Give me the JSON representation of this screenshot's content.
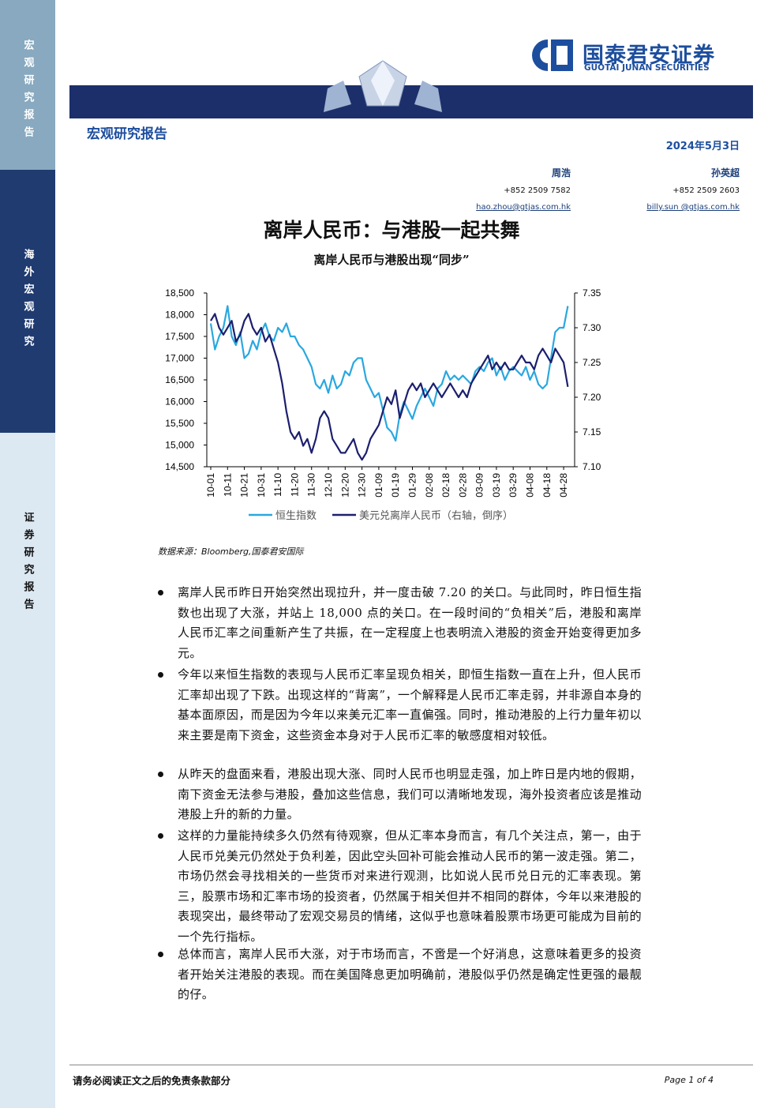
{
  "sidebar": [
    "宏观研究报告",
    "海外宏观研究",
    "证券研究报告"
  ],
  "header": {
    "logo_cn": "国泰君安证券",
    "logo_en": "GUOTAI JUNAN SECURITIES",
    "report_type": "宏观研究报告",
    "date": "2024年5月3日"
  },
  "authors": [
    {
      "name": "周浩",
      "phone": "+852 2509 7582",
      "email": "hao.zhou@gtjas.com.hk"
    },
    {
      "name": "孙英超",
      "phone": "+852 2509 2603",
      "email": "billy.sun @gtjas.com.hk"
    }
  ],
  "title": "离岸人民币：与港股一起共舞",
  "chart_data": {
    "type": "line",
    "title": "离岸人民币与港股出现“同步”",
    "categories": [
      "10-01",
      null,
      null,
      null,
      "10-11",
      null,
      null,
      null,
      "10-21",
      null,
      null,
      null,
      "10-31",
      null,
      null,
      null,
      "11-10",
      null,
      null,
      null,
      "11-20",
      null,
      null,
      null,
      "11-30",
      null,
      null,
      null,
      "12-10",
      null,
      null,
      null,
      "12-20",
      null,
      null,
      null,
      "12-30",
      null,
      null,
      null,
      "01-09",
      null,
      null,
      null,
      "01-19",
      null,
      null,
      null,
      "01-29",
      null,
      null,
      null,
      "02-08",
      null,
      null,
      null,
      "02-18",
      null,
      null,
      null,
      "02-28",
      null,
      null,
      null,
      "03-09",
      null,
      null,
      null,
      "03-19",
      null,
      null,
      null,
      "03-29",
      null,
      null,
      null,
      "04-08",
      null,
      null,
      null,
      "04-18",
      null,
      null,
      null,
      "04-28",
      null
    ],
    "series": [
      {
        "name": "恒生指数",
        "color": "#29a8e0",
        "values": [
          17800,
          17200,
          17500,
          17700,
          18200,
          17500,
          17300,
          17600,
          17000,
          17100,
          17400,
          17200,
          17600,
          17800,
          17500,
          17400,
          17700,
          17600,
          17800,
          17500,
          17500,
          17300,
          17200,
          17000,
          16800,
          16400,
          16300,
          16500,
          16200,
          16600,
          16300,
          16400,
          16700,
          16600,
          16900,
          17000,
          17000,
          16500,
          16300,
          16100,
          16200,
          15800,
          15400,
          15300,
          15100,
          15700,
          16000,
          15800,
          15600,
          15900,
          16100,
          16300,
          16100,
          15900,
          16300,
          16400,
          16700,
          16500,
          16600,
          16500,
          16600,
          16500,
          16400,
          16700,
          16800,
          16700,
          16900,
          17000,
          16600,
          16800,
          16500,
          16700,
          16800,
          16700,
          16600,
          16800,
          16500,
          16700,
          16400,
          16300,
          16400,
          17000,
          17600,
          17700,
          17700,
          18200
        ]
      },
      {
        "name": "美元兑离岸人民币（右轴，倒序）",
        "color": "#1c1f6e",
        "axis": "y2",
        "values": [
          7.31,
          7.32,
          7.3,
          7.29,
          7.3,
          7.31,
          7.28,
          7.29,
          7.31,
          7.32,
          7.3,
          7.29,
          7.3,
          7.28,
          7.29,
          7.27,
          7.25,
          7.22,
          7.18,
          7.15,
          7.14,
          7.15,
          7.13,
          7.14,
          7.12,
          7.14,
          7.17,
          7.18,
          7.17,
          7.14,
          7.13,
          7.12,
          7.12,
          7.13,
          7.14,
          7.12,
          7.11,
          7.12,
          7.14,
          7.15,
          7.16,
          7.18,
          7.2,
          7.19,
          7.21,
          7.17,
          7.19,
          7.21,
          7.22,
          7.21,
          7.22,
          7.2,
          7.21,
          7.22,
          7.21,
          7.2,
          7.21,
          7.22,
          7.21,
          7.2,
          7.21,
          7.2,
          7.22,
          7.23,
          7.24,
          7.25,
          7.26,
          7.24,
          7.25,
          7.24,
          7.25,
          7.24,
          7.24,
          7.25,
          7.26,
          7.25,
          7.25,
          7.24,
          7.26,
          7.27,
          7.26,
          7.25,
          7.27,
          7.26,
          7.25,
          7.215
        ]
      }
    ],
    "ylim": [
      14500,
      18500
    ],
    "yticks": [
      {
        "value": 14500,
        "label": "14,500"
      },
      {
        "value": 15000,
        "label": "15,000"
      },
      {
        "value": 15500,
        "label": "15,500"
      },
      {
        "value": 16000,
        "label": "16,000"
      },
      {
        "value": 16500,
        "label": "16,500"
      },
      {
        "value": 17000,
        "label": "17,000"
      },
      {
        "value": 17500,
        "label": "17,500"
      },
      {
        "value": 18000,
        "label": "18,000"
      },
      {
        "value": 18500,
        "label": "18,500"
      }
    ],
    "y2lim": [
      7.1,
      7.35
    ],
    "y2ticks": [
      {
        "value": 7.1,
        "label": "7.10"
      },
      7.15,
      {
        "value": 7.2,
        "label": "7.20"
      },
      7.25,
      {
        "value": 7.3,
        "label": "7.30"
      },
      7.35
    ],
    "grid": false,
    "legend": "bottom"
  },
  "source": "数据来源：Bloomberg,国泰君安国际",
  "bullets": [
    "离岸人民币昨日开始突然出现拉升，并一度击破 7.20 的关口。与此同时，昨日恒生指数也出现了大涨，并站上 18,000 点的关口。在一段时间的“负相关”后，港股和离岸人民币汇率之间重新产生了共振，在一定程度上也表明流入港股的资金开始变得更加多元。",
    "今年以来恒生指数的表现与人民币汇率呈现负相关，即恒生指数一直在上升，但人民币汇率却出现了下跌。出现这样的“背离”，一个解释是人民币汇率走弱，并非源自本身的基本面原因，而是因为今年以来美元汇率一直偏强。同时，推动港股的上行力量年初以来主要是南下资金，这些资金本身对于人民币汇率的敏感度相对较低。",
    "从昨天的盘面来看，港股出现大涨、同时人民币也明显走强，加上昨日是内地的假期，南下资金无法参与港股，叠加这些信息，我们可以清晰地发现，海外投资者应该是推动港股上升的新的力量。",
    "这样的力量能持续多久仍然有待观察，但从汇率本身而言，有几个关注点，第一，由于人民币兑美元仍然处于负利差，因此空头回补可能会推动人民币的第一波走强。第二，市场仍然会寻找相关的一些货币对来进行观测，比如说人民币兑日元的汇率表现。第三，股票市场和汇率市场的投资者，仍然属于相关但并不相同的群体，今年以来港股的表现突出，最终带动了宏观交易员的情绪，这似乎也意味着股票市场更可能成为目前的一个先行指标。",
    "总体而言，离岸人民币大涨，对于市场而言，不啻是一个好消息，这意味着更多的投资者开始关注港股的表现。而在美国降息更加明确前，港股似乎仍然是确定性更强的最靓的仔。"
  ],
  "footer": {
    "disclaimer": "请务必阅读正文之后的免责条款部分",
    "page": "Page 1 of 4"
  }
}
